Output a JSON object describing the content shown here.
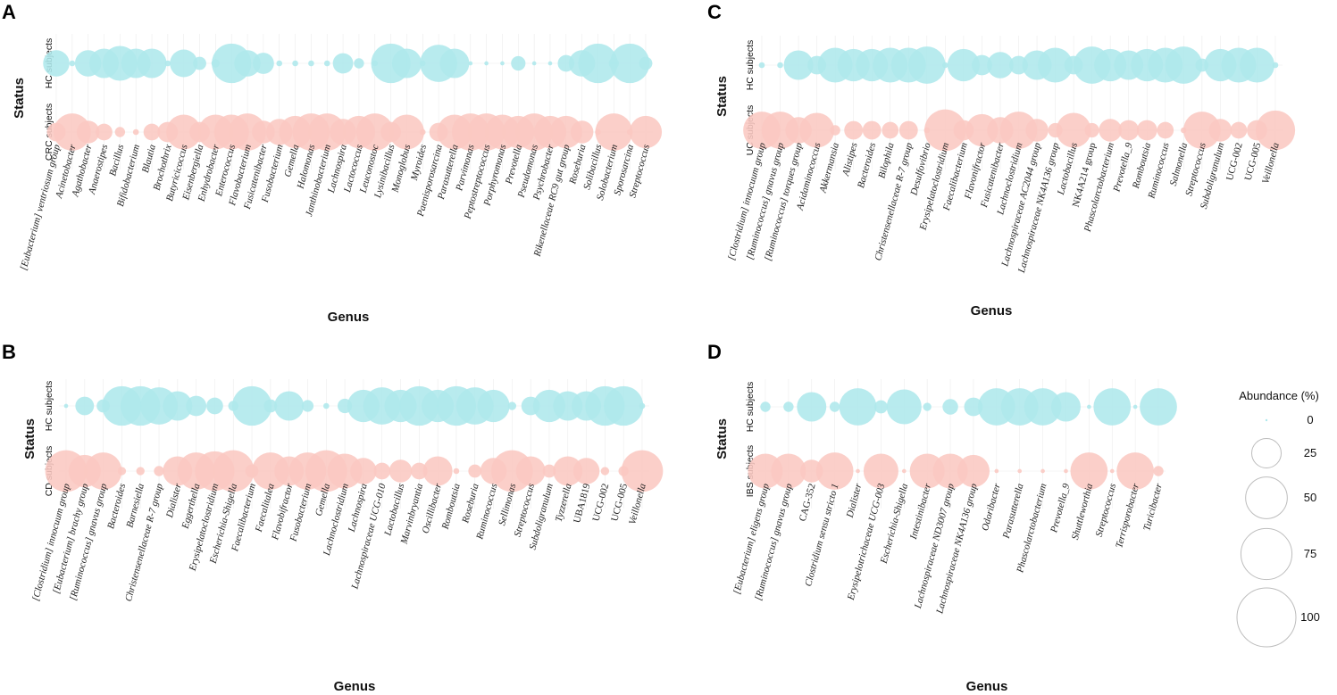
{
  "colors": {
    "hc": "#aee8ec",
    "disease": "#fbc8c2",
    "grid": "#ececec",
    "legend_stroke": "#bdbdbd"
  },
  "legend": {
    "title": "Abundance (%)",
    "labels": [
      "0",
      "25",
      "50",
      "75",
      "100"
    ],
    "values": [
      0,
      25,
      50,
      75,
      100
    ]
  },
  "chart_data": [
    {
      "panel": "A",
      "type": "scatter",
      "xlabel": "Genus",
      "ylabel": "Status",
      "rows": [
        "HC subjects",
        "CRC subjects"
      ],
      "categories": [
        "[Eubacterium] ventriosum group",
        "Acinetobacter",
        "Agathobacter",
        "Anaerostipes",
        "Bacillus",
        "Bifidobacterium",
        "Blautia",
        "Brochothrix",
        "Butyricicoccus",
        "Eisenbergiella",
        "Enhydrobacter",
        "Enterococcus",
        "Flavobacterium",
        "Fusicatenibacter",
        "Fusobacterium",
        "Gemella",
        "Halomonas",
        "Janthinobacterium",
        "Lachnospira",
        "Lactococcus",
        "Leuconostoc",
        "Lysinibacillus",
        "Monoglobus",
        "Myroides",
        "Paenisporosarcina",
        "Parasutterella",
        "Parvimonas",
        "Peptostreptococcus",
        "Porphyromonas",
        "Prevotella",
        "Pseudomonas",
        "Psychrobacter",
        "Rikenellaceae RC9 gut group",
        "Roseburia",
        "Solibacillus",
        "Solobacterium",
        "Sporosarcina",
        "Streptococcus"
      ],
      "series": [
        {
          "name": "HC subjects",
          "values": [
            20,
            1,
            20,
            25,
            35,
            25,
            25,
            1,
            22,
            5,
            2,
            45,
            20,
            13,
            1,
            1,
            1,
            1,
            12,
            3,
            1,
            45,
            25,
            1,
            40,
            25,
            0.5,
            0.5,
            0.5,
            6,
            0.5,
            0.5,
            8,
            20,
            45,
            3,
            45,
            5
          ]
        },
        {
          "name": "CRC subjects",
          "values": [
            10,
            40,
            15,
            8,
            3,
            1,
            8,
            12,
            35,
            12,
            35,
            35,
            40,
            15,
            20,
            30,
            40,
            40,
            20,
            30,
            40,
            12,
            35,
            1,
            10,
            35,
            40,
            40,
            35,
            30,
            40,
            30,
            30,
            15,
            1,
            40,
            1,
            30
          ]
        }
      ]
    },
    {
      "panel": "B",
      "type": "scatter",
      "xlabel": "Genus",
      "ylabel": "Status",
      "rows": [
        "HC subjects",
        "CD subjects"
      ],
      "categories": [
        "[Clostridium] innocuum group",
        "[Eubacterium] brachy group",
        "[Ruminococcus] gnavus group",
        "Bacteroides",
        "Barnesiella",
        "Christensenellaceae R-7 group",
        "Dialister",
        "Eggerthella",
        "Erysipelatoclostridium",
        "Escherichia-Shigella",
        "Faecalibacterium",
        "Faecalitalea",
        "Flavobifractor",
        "Fusobacterium",
        "Gemella",
        "Lachnoclostridium",
        "Lachnospira",
        "Lachnospiraceae UCG-010",
        "Lactobacillus",
        "Marvinbryantia",
        "Oscillibacter",
        "Romboutsia",
        "Roseburia",
        "Ruminococcus",
        "Sellimonas",
        "Streptococcus",
        "Subdoligranulum",
        "Tyzzerella",
        "UBA1819",
        "UCG-002",
        "UCG-005",
        "Veillonella"
      ],
      "series": [
        {
          "name": "HC subjects",
          "values": [
            0.5,
            10,
            5,
            45,
            45,
            40,
            25,
            12,
            8,
            3,
            45,
            5,
            25,
            4,
            1,
            6,
            30,
            40,
            30,
            45,
            30,
            45,
            40,
            30,
            2,
            10,
            30,
            25,
            25,
            45,
            45,
            1
          ]
        },
        {
          "name": "CD subjects",
          "values": [
            50,
            30,
            40,
            2,
            2,
            3,
            25,
            40,
            45,
            50,
            5,
            40,
            25,
            40,
            50,
            35,
            20,
            8,
            15,
            8,
            25,
            1,
            5,
            20,
            50,
            25,
            5,
            25,
            20,
            2,
            3,
            50
          ]
        }
      ]
    },
    {
      "panel": "C",
      "type": "scatter",
      "xlabel": "Genus",
      "ylabel": "Status",
      "rows": [
        "HC subjects",
        "UC subjects"
      ],
      "categories": [
        "[Clostridium] innocuum group",
        "[Ruminococcus] gnavus group",
        "[Ruminococcus] torques group",
        "Acidaminococcus",
        "Akkermansia",
        "Alistipes",
        "Bacteroides",
        "Bilophila",
        "Christensenellaceae R-7 group",
        "Desulfovibrio",
        "Erysipelatoclostridium",
        "Faecalibacterium",
        "Flavonifractor",
        "Fusicatenibacter",
        "Lachnoclostridium",
        "Lachnospiraceae AC2044 group",
        "Lachnospiraceae NK4A136 group",
        "Lactobacillus",
        "NK4A214 group",
        "Phascolarctobacterium",
        "Prevotella_9",
        "Romboutsia",
        "Ruminococcus",
        "Salmonella",
        "Streptococcus",
        "Subdoligranulum",
        "UCG-002",
        "UCG-005",
        "Veillonella"
      ],
      "series": [
        {
          "name": "HC subjects",
          "values": [
            1,
            1,
            25,
            10,
            35,
            30,
            30,
            35,
            35,
            40,
            1,
            30,
            12,
            20,
            10,
            25,
            35,
            10,
            40,
            30,
            25,
            30,
            35,
            40,
            5,
            30,
            35,
            35,
            1
          ]
        },
        {
          "name": "UC subjects",
          "values": [
            40,
            40,
            20,
            35,
            3,
            10,
            10,
            8,
            10,
            1,
            50,
            12,
            30,
            20,
            40,
            15,
            6,
            35,
            6,
            15,
            12,
            12,
            8,
            1,
            40,
            15,
            8,
            12,
            45
          ]
        }
      ]
    },
    {
      "panel": "D",
      "type": "scatter",
      "xlabel": "Genus",
      "ylabel": "Status",
      "rows": [
        "HC subjects",
        "IBS subjects"
      ],
      "categories": [
        "[Eubacterium] eligens group",
        "[Ruminococcus] gnavus group",
        "CAG-352",
        "Clostridium sensu stricto 1",
        "Dialister",
        "Erysipelotrichaceae UCG-003",
        "Escherichia-Shigella",
        "Intestinibacter",
        "Lachnospiraceae ND3007 group",
        "Lachnospiraceae NK4A136 group",
        "Odoribacter",
        "Parasutterella",
        "Phascolarctobacterium",
        "Prevotella_9",
        "Shuttleworthia",
        "Streptococcus",
        "Terrisporobacter",
        "Turicibacter"
      ],
      "series": [
        {
          "name": "HC subjects",
          "values": [
            3,
            3,
            25,
            3,
            40,
            5,
            35,
            2,
            7,
            10,
            40,
            40,
            40,
            25,
            0.5,
            40,
            0.5,
            40
          ]
        },
        {
          "name": "IBS subjects",
          "values": [
            35,
            35,
            15,
            40,
            0.5,
            35,
            0.5,
            35,
            35,
            30,
            0.5,
            0.5,
            0.5,
            0.5,
            40,
            0.5,
            40,
            3
          ]
        }
      ]
    }
  ]
}
